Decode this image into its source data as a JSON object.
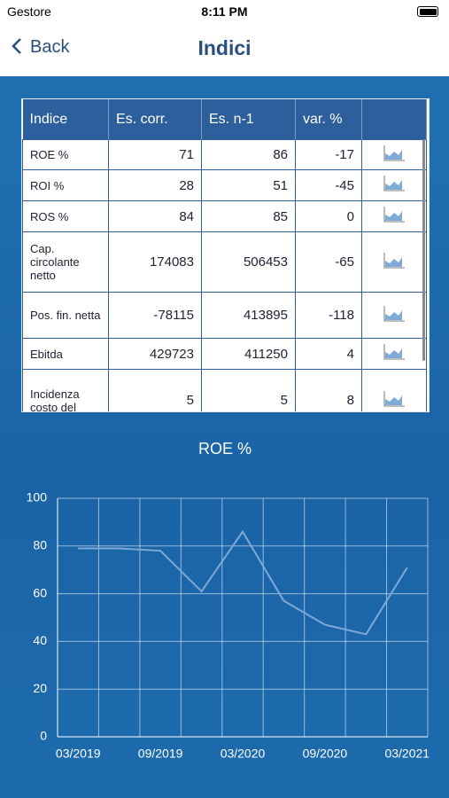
{
  "status_bar": {
    "carrier": "Gestore",
    "time": "8:11 PM"
  },
  "nav": {
    "back": "Back",
    "title": "Indici"
  },
  "table": {
    "headers": [
      "Indice",
      "Es. corr.",
      "Es. n-1",
      "var. %"
    ],
    "rows": [
      [
        "ROE %",
        71,
        86,
        -17
      ],
      [
        "ROI %",
        28,
        51,
        -45
      ],
      [
        "ROS %",
        84,
        85,
        0
      ],
      [
        "Cap. circolante netto",
        174083,
        506453,
        -65
      ],
      [
        "Pos. fin. netta",
        -78115,
        413895,
        -118
      ],
      [
        "Ebitda",
        429723,
        411250,
        4
      ],
      [
        "Incidenza costo del",
        5,
        5,
        8
      ]
    ]
  },
  "chart_data": {
    "type": "line",
    "title": "ROE %",
    "categories": [
      "03/2019",
      null,
      "09/2019",
      null,
      "03/2020",
      null,
      "09/2020",
      null,
      "03/2021"
    ],
    "values": [
      79,
      79,
      78,
      61,
      86,
      57,
      47,
      43,
      71
    ],
    "color": "#7fa9d6",
    "ylim": [
      0,
      100
    ],
    "yticks": [
      0,
      20,
      40,
      60,
      80,
      100
    ],
    "grid": true
  }
}
